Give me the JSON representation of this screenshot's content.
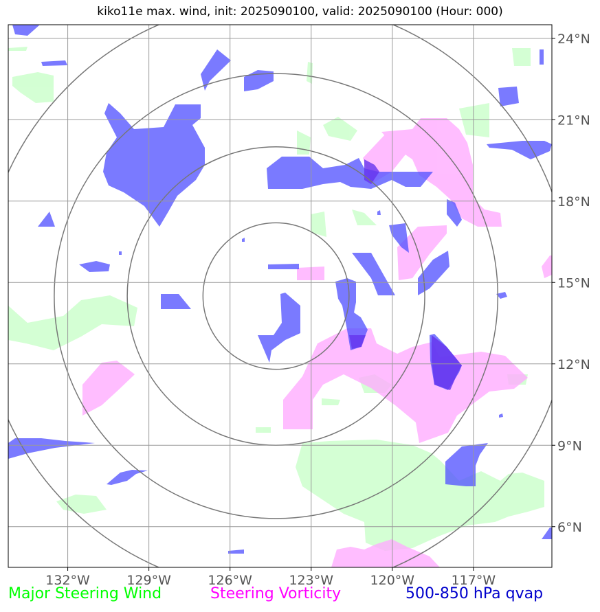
{
  "title": "kiko11e max. wind, init: 2025090100, valid: 2025090100 (Hour: 000)",
  "lat_labels": [
    "24°N",
    "21°N",
    "18°N",
    "15°N",
    "12°N",
    "9°N",
    "6°N"
  ],
  "lon_labels": [
    "132°W",
    "129°W",
    "126°W",
    "123°W",
    "120°W",
    "117°W"
  ],
  "legend": {
    "wind": {
      "label": "Major Steering Wind",
      "color": "#00ff00"
    },
    "vorticity": {
      "label": "Steering Vorticity",
      "color": "#ff00ff"
    },
    "qvap": {
      "label": "500-850 hPa qvap",
      "color": "#0000cc"
    }
  },
  "colors": {
    "wind_fill": "#ccffcc",
    "vort_fill": "#ffaaff",
    "qvap_fill": "#5555ff",
    "grid": "#999999",
    "rings": "#777777",
    "tick_text": "#555555"
  },
  "map": {
    "center_lon": -124.3,
    "center_lat": 14.5,
    "extent": {
      "lon_min": -134.2,
      "lon_max": -114.1,
      "lat_min": 4.5,
      "lat_max": 24.5
    },
    "range_ring_radii_deg": [
      2.7,
      5.5,
      8.2,
      10.9
    ]
  }
}
